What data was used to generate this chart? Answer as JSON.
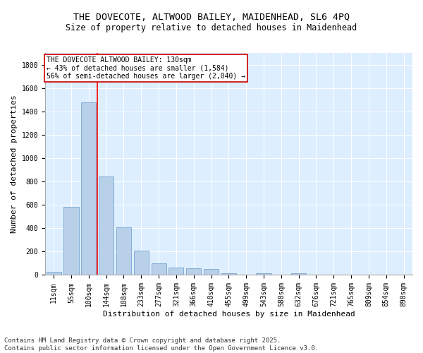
{
  "title_line1": "THE DOVECOTE, ALTWOOD BAILEY, MAIDENHEAD, SL6 4PQ",
  "title_line2": "Size of property relative to detached houses in Maidenhead",
  "xlabel": "Distribution of detached houses by size in Maidenhead",
  "ylabel": "Number of detached properties",
  "categories": [
    "11sqm",
    "55sqm",
    "100sqm",
    "144sqm",
    "188sqm",
    "233sqm",
    "277sqm",
    "321sqm",
    "366sqm",
    "410sqm",
    "455sqm",
    "499sqm",
    "543sqm",
    "588sqm",
    "632sqm",
    "676sqm",
    "721sqm",
    "765sqm",
    "809sqm",
    "854sqm",
    "898sqm"
  ],
  "values": [
    28,
    580,
    1480,
    840,
    410,
    210,
    100,
    65,
    58,
    53,
    15,
    0,
    15,
    0,
    15,
    0,
    0,
    0,
    0,
    0,
    0
  ],
  "bar_color": "#b8d0e8",
  "bar_edge_color": "#6699cc",
  "red_line_x": 2.5,
  "annotation_line1": "THE DOVECOTE ALTWOOD BAILEY: 130sqm",
  "annotation_line2": "← 43% of detached houses are smaller (1,584)",
  "annotation_line3": "56% of semi-detached houses are larger (2,040) →",
  "annotation_box_facecolor": "#ffffff",
  "annotation_box_edgecolor": "#cc0000",
  "ylim": [
    0,
    1900
  ],
  "yticks": [
    0,
    200,
    400,
    600,
    800,
    1000,
    1200,
    1400,
    1600,
    1800
  ],
  "footer_line1": "Contains HM Land Registry data © Crown copyright and database right 2025.",
  "footer_line2": "Contains public sector information licensed under the Open Government Licence v3.0.",
  "fig_facecolor": "#ffffff",
  "plot_bg_color": "#ddeeff",
  "grid_color": "#ffffff",
  "title_fontsize": 9.5,
  "subtitle_fontsize": 8.5,
  "axis_label_fontsize": 8,
  "tick_fontsize": 7,
  "annotation_fontsize": 7,
  "footer_fontsize": 6.5
}
